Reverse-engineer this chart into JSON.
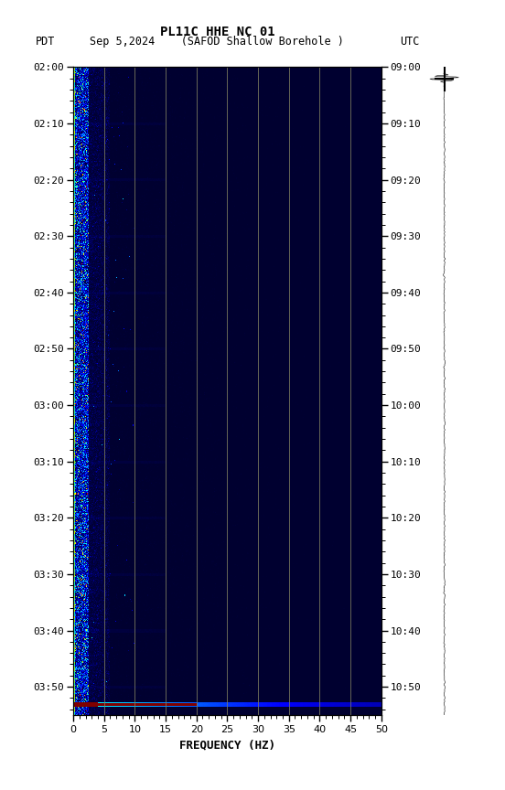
{
  "title_line1": "PL11C HHE NC 01",
  "title_line2_left": "PDT   Sep 5,2024     (SAFOD Shallow Borehole )                UTC",
  "xlabel": "FREQUENCY (HZ)",
  "freq_min": 0,
  "freq_max": 50,
  "left_tick_labels": [
    "02:00",
    "02:10",
    "02:20",
    "02:30",
    "02:40",
    "02:50",
    "03:00",
    "03:10",
    "03:20",
    "03:30",
    "03:40",
    "03:50"
  ],
  "right_tick_labels": [
    "09:00",
    "09:10",
    "09:20",
    "09:30",
    "09:40",
    "09:50",
    "10:00",
    "10:10",
    "10:20",
    "10:30",
    "10:40",
    "10:50"
  ],
  "vertical_lines_freq": [
    5,
    10,
    15,
    20,
    25,
    30,
    35,
    40,
    45
  ],
  "background_color": "#ffffff",
  "fig_width": 5.52,
  "fig_height": 8.64,
  "dpi": 100,
  "total_minutes": 115.0,
  "event_minute": 113,
  "seed": 42,
  "vline_color": "#808060",
  "vline_alpha": 0.8
}
